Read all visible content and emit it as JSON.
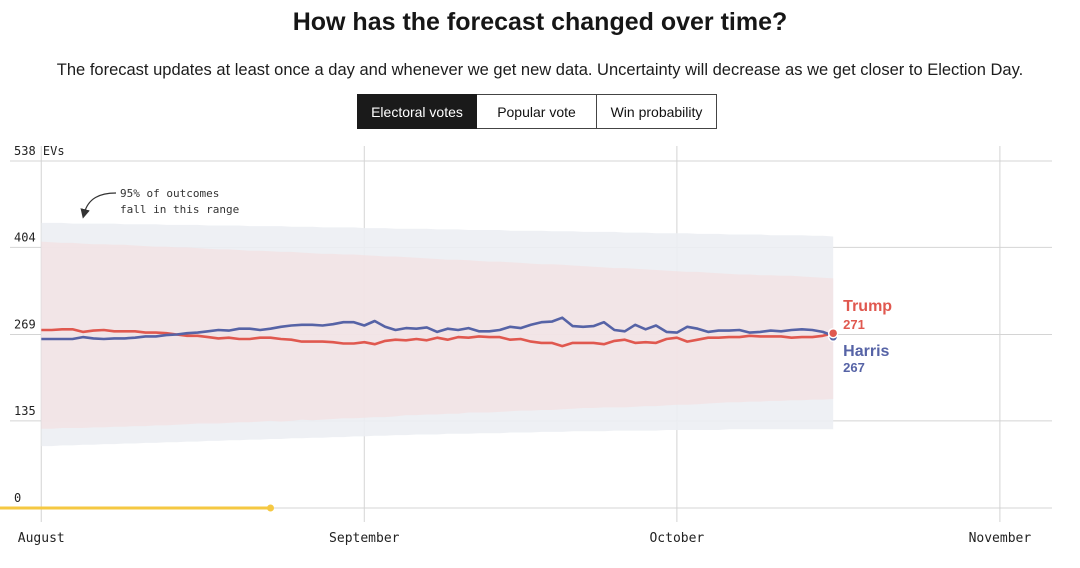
{
  "header": {
    "title": "How has the forecast changed over time?",
    "subtitle": "The forecast updates at least once a day and whenever we get new data. Uncertainty will decrease as we get closer to Election Day."
  },
  "tabs": [
    {
      "label": "Electoral votes",
      "active": true
    },
    {
      "label": "Popular vote",
      "active": false
    },
    {
      "label": "Win probability",
      "active": false
    }
  ],
  "annotation": {
    "line1": "95% of outcomes",
    "line2": "fall in this range"
  },
  "colors": {
    "trump": "#e0584f",
    "harris": "#5663a6",
    "trump_band": "#f6dcdc",
    "harris_band": "#eceef3",
    "progress": "#f5c842",
    "grid": "#d4d4d4"
  },
  "chart_data": {
    "type": "line",
    "title": "How has the forecast changed over time?",
    "ylabel": "EVs",
    "ylim": [
      0,
      538
    ],
    "y_ticks": [
      {
        "value": 538,
        "label": "538 EVs"
      },
      {
        "value": 404,
        "label": "404"
      },
      {
        "value": 269,
        "label": "269"
      },
      {
        "value": 135,
        "label": "135"
      },
      {
        "value": 0,
        "label": "0"
      }
    ],
    "x_domain": [
      -3,
      97
    ],
    "x_ticks": [
      {
        "day": 0,
        "label": "August"
      },
      {
        "day": 31,
        "label": "September"
      },
      {
        "day": 61,
        "label": "October"
      },
      {
        "day": 92,
        "label": "November"
      }
    ],
    "progress_range": [
      -6,
      22
    ],
    "series": [
      {
        "name": "Trump",
        "final_value": 271,
        "values": [
          276,
          276,
          277,
          277,
          273,
          275,
          276,
          274,
          274,
          274,
          272,
          272,
          271,
          269,
          267,
          267,
          265,
          263,
          264,
          262,
          262,
          264,
          264,
          262,
          261,
          258,
          258,
          258,
          257,
          255,
          255,
          257,
          254,
          259,
          261,
          260,
          262,
          260,
          264,
          261,
          265,
          264,
          266,
          265,
          265,
          261,
          262,
          258,
          256,
          256,
          251,
          256,
          256,
          256,
          254,
          259,
          261,
          256,
          257,
          256,
          262,
          264,
          258,
          261,
          264,
          264,
          265,
          265,
          267,
          266,
          266,
          266,
          264,
          265,
          265,
          267,
          271
        ],
        "band_low": [
          123,
          123,
          124,
          124,
          124,
          125,
          125,
          126,
          126,
          127,
          127,
          128,
          128,
          129,
          130,
          131,
          131,
          131,
          132,
          133,
          133,
          134,
          135,
          134,
          135,
          137,
          136,
          137,
          138,
          139,
          139,
          140,
          141,
          141,
          142,
          144,
          144,
          145,
          145,
          146,
          146,
          148,
          148,
          148,
          149,
          150,
          151,
          151,
          152,
          152,
          153,
          154,
          155,
          155,
          156,
          156,
          156,
          157,
          158,
          158,
          159,
          160,
          160,
          161,
          162,
          163,
          164,
          164,
          165,
          165,
          166,
          166,
          167,
          167,
          168,
          168,
          169
        ],
        "band_high": [
          413,
          412,
          411,
          411,
          410,
          409,
          409,
          408,
          408,
          407,
          406,
          405,
          405,
          404,
          404,
          403,
          402,
          401,
          401,
          400,
          399,
          399,
          398,
          397,
          397,
          396,
          395,
          394,
          394,
          393,
          393,
          392,
          391,
          390,
          390,
          389,
          388,
          387,
          386,
          385,
          385,
          384,
          383,
          382,
          382,
          381,
          380,
          379,
          378,
          378,
          377,
          376,
          375,
          374,
          373,
          372,
          372,
          371,
          370,
          369,
          368,
          367,
          366,
          366,
          365,
          364,
          363,
          362,
          362,
          361,
          361,
          360,
          360,
          359,
          358,
          357,
          356
        ]
      },
      {
        "name": "Harris",
        "final_value": 267,
        "values": [
          262,
          262,
          262,
          262,
          265,
          263,
          262,
          263,
          263,
          264,
          266,
          266,
          268,
          269,
          271,
          272,
          274,
          276,
          275,
          278,
          278,
          276,
          278,
          281,
          283,
          284,
          284,
          283,
          285,
          288,
          288,
          283,
          290,
          281,
          276,
          279,
          278,
          280,
          273,
          278,
          276,
          279,
          274,
          274,
          276,
          281,
          279,
          284,
          288,
          289,
          295,
          282,
          281,
          282,
          288,
          276,
          274,
          284,
          277,
          283,
          273,
          272,
          281,
          278,
          273,
          275,
          275,
          276,
          272,
          273,
          275,
          274,
          276,
          277,
          276,
          273,
          267
        ],
        "band_low": [
          96,
          96,
          97,
          97,
          98,
          98,
          99,
          99,
          100,
          100,
          101,
          101,
          102,
          102,
          103,
          103,
          104,
          104,
          105,
          105,
          106,
          106,
          107,
          107,
          108,
          108,
          109,
          109,
          110,
          110,
          111,
          111,
          112,
          112,
          113,
          113,
          114,
          114,
          114,
          115,
          115,
          115,
          116,
          116,
          116,
          117,
          117,
          117,
          118,
          118,
          118,
          119,
          119,
          119,
          119,
          120,
          120,
          120,
          120,
          120,
          121,
          121,
          121,
          121,
          121,
          121,
          122,
          122,
          122,
          122,
          122,
          122,
          122,
          122,
          122,
          122,
          122
        ],
        "band_high": [
          442,
          442,
          442,
          441,
          441,
          441,
          441,
          441,
          440,
          440,
          440,
          440,
          439,
          439,
          439,
          439,
          438,
          438,
          438,
          438,
          437,
          437,
          437,
          437,
          436,
          436,
          436,
          435,
          435,
          435,
          435,
          434,
          434,
          434,
          433,
          433,
          433,
          433,
          432,
          432,
          432,
          431,
          431,
          431,
          431,
          430,
          430,
          430,
          430,
          429,
          429,
          429,
          428,
          428,
          428,
          428,
          427,
          427,
          427,
          426,
          426,
          426,
          426,
          425,
          425,
          425,
          424,
          424,
          424,
          424,
          423,
          423,
          423,
          423,
          422,
          422,
          421
        ]
      }
    ],
    "legend": "end-of-line labels"
  }
}
